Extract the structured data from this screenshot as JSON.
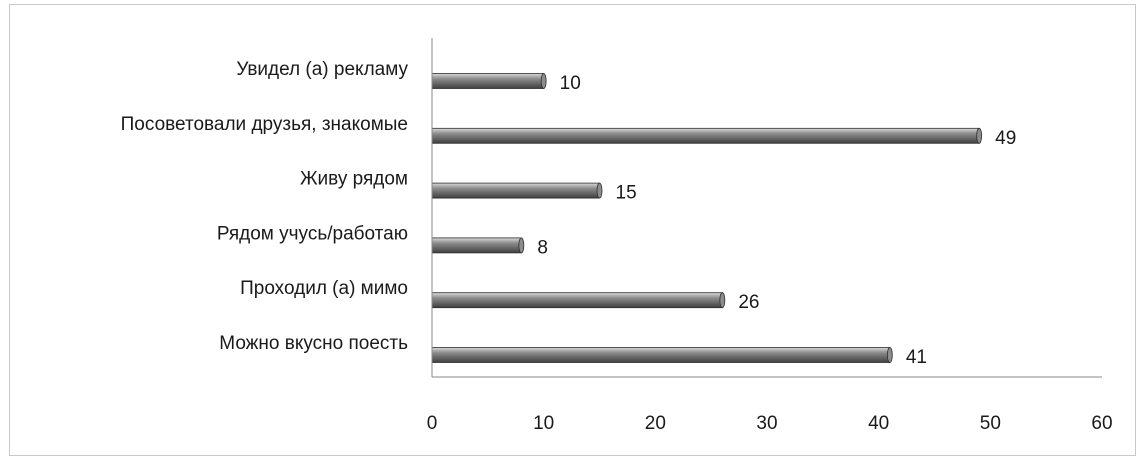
{
  "chart_data": {
    "type": "bar",
    "orientation": "horizontal",
    "title": "",
    "xlabel": "",
    "ylabel": "",
    "categories": [
      "Увидел (а) рекламу",
      "Посоветовали друзья, знакомые",
      "Живу рядом",
      "Рядом учусь/работаю",
      "Проходил (а) мимо",
      "Можно вкусно поесть"
    ],
    "values": [
      10,
      49,
      15,
      8,
      26,
      41
    ],
    "xlim": [
      0,
      60
    ],
    "xticks": [
      0,
      10,
      20,
      30,
      40,
      50,
      60
    ],
    "grid": false,
    "legend": "none",
    "data_labels": true,
    "colors": {
      "bar_dark": "#3f3f3f",
      "bar_mid": "#8c8c8c",
      "bar_light": "#d9d9d9",
      "axis": "#8a8a8a",
      "frame": "#c9c9c9",
      "text": "#1a1a1a"
    }
  }
}
